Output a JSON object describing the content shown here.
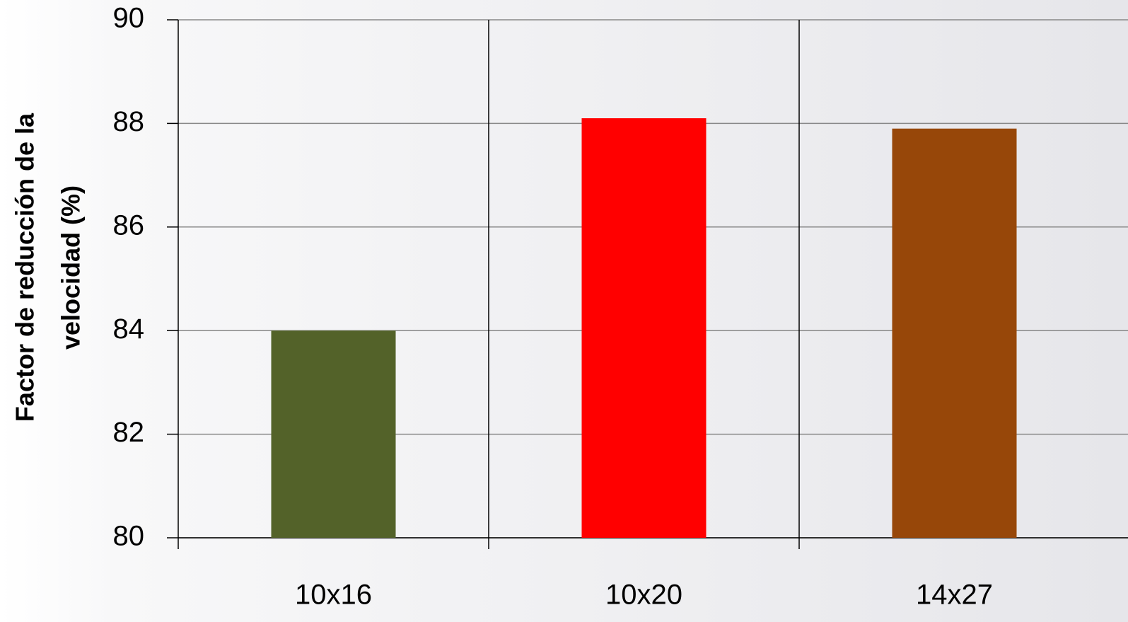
{
  "chart_data": {
    "type": "bar",
    "ylabel": [
      "Factor de reducción de la",
      "velocidad (%)"
    ],
    "categories": [
      "10x16",
      "10x20",
      "14x27"
    ],
    "values": [
      84,
      88.1,
      87.9
    ],
    "colors": [
      "#536229",
      "#ff0000",
      "#974709"
    ],
    "ylim": [
      80,
      90
    ],
    "yticks": [
      80,
      82,
      84,
      86,
      88,
      90
    ],
    "grid": true
  }
}
